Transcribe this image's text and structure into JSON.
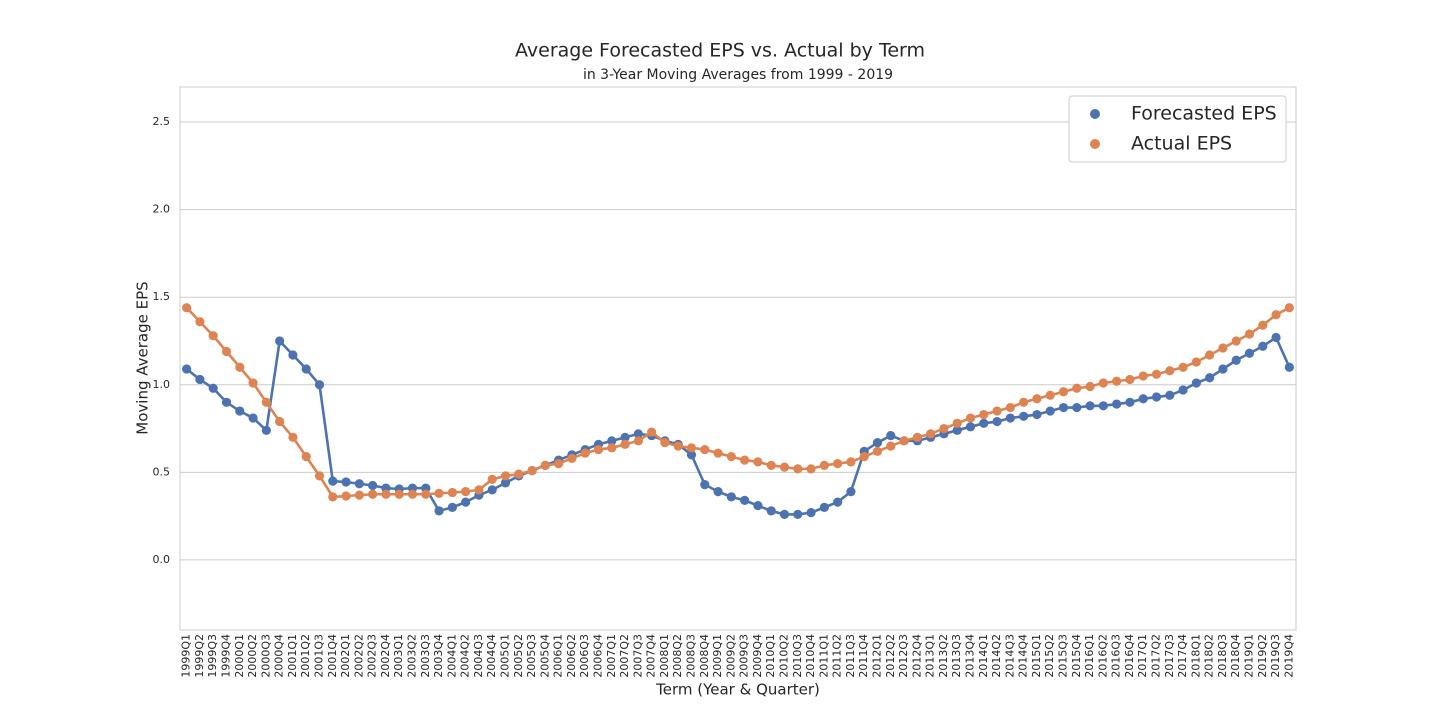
{
  "chart_data": {
    "type": "line",
    "title": "Average Forecasted EPS vs. Actual by Term",
    "subtitle": "in 3-Year Moving Averages from 1999 - 2019",
    "xlabel": "Term (Year & Quarter)",
    "ylabel": "Moving Average EPS",
    "categories": [
      "1999Q1",
      "1999Q2",
      "1999Q3",
      "1999Q4",
      "2000Q1",
      "2000Q2",
      "2000Q3",
      "2000Q4",
      "2001Q1",
      "2001Q2",
      "2001Q3",
      "2001Q4",
      "2002Q1",
      "2002Q2",
      "2002Q3",
      "2002Q4",
      "2003Q1",
      "2003Q2",
      "2003Q3",
      "2003Q4",
      "2004Q1",
      "2004Q2",
      "2004Q3",
      "2004Q4",
      "2005Q1",
      "2005Q2",
      "2005Q3",
      "2005Q4",
      "2006Q1",
      "2006Q2",
      "2006Q3",
      "2006Q4",
      "2007Q1",
      "2007Q2",
      "2007Q3",
      "2007Q4",
      "2008Q1",
      "2008Q2",
      "2008Q3",
      "2008Q4",
      "2009Q1",
      "2009Q2",
      "2009Q3",
      "2009Q4",
      "2010Q1",
      "2010Q2",
      "2010Q3",
      "2010Q4",
      "2011Q1",
      "2011Q2",
      "2011Q3",
      "2011Q4",
      "2012Q1",
      "2012Q2",
      "2012Q3",
      "2012Q4",
      "2013Q1",
      "2013Q2",
      "2013Q3",
      "2013Q4",
      "2014Q1",
      "2014Q2",
      "2014Q3",
      "2014Q4",
      "2015Q1",
      "2015Q2",
      "2015Q3",
      "2015Q4",
      "2016Q1",
      "2016Q2",
      "2016Q3",
      "2016Q4",
      "2017Q1",
      "2017Q2",
      "2017Q3",
      "2017Q4",
      "2018Q1",
      "2018Q2",
      "2018Q3",
      "2018Q4",
      "2019Q1",
      "2019Q2",
      "2019Q3",
      "2019Q4"
    ],
    "series": [
      {
        "name": "Forecasted EPS",
        "color": "#4c72b0",
        "values": [
          1.09,
          1.03,
          0.98,
          0.9,
          0.85,
          0.81,
          0.74,
          1.25,
          1.17,
          1.09,
          1.0,
          0.45,
          0.445,
          0.435,
          0.425,
          0.41,
          0.405,
          0.41,
          0.41,
          0.28,
          0.3,
          0.33,
          0.37,
          0.4,
          0.44,
          0.48,
          0.51,
          0.54,
          0.57,
          0.6,
          0.63,
          0.66,
          0.68,
          0.7,
          0.72,
          0.71,
          0.68,
          0.66,
          0.6,
          0.43,
          0.39,
          0.36,
          0.34,
          0.31,
          0.28,
          0.26,
          0.26,
          0.27,
          0.3,
          0.33,
          0.39,
          0.62,
          0.67,
          0.71,
          0.68,
          0.68,
          0.7,
          0.72,
          0.74,
          0.76,
          0.78,
          0.79,
          0.81,
          0.82,
          0.83,
          0.85,
          0.87,
          0.87,
          0.88,
          0.88,
          0.89,
          0.9,
          0.92,
          0.93,
          0.94,
          0.97,
          1.01,
          1.04,
          1.09,
          1.14,
          1.18,
          1.22,
          1.27,
          1.1
        ]
      },
      {
        "name": "Actual EPS",
        "color": "#dd8452",
        "values": [
          1.44,
          1.36,
          1.28,
          1.19,
          1.1,
          1.01,
          0.9,
          0.79,
          0.7,
          0.59,
          0.48,
          0.36,
          0.365,
          0.37,
          0.375,
          0.375,
          0.375,
          0.375,
          0.375,
          0.38,
          0.385,
          0.39,
          0.4,
          0.46,
          0.48,
          0.49,
          0.51,
          0.54,
          0.55,
          0.58,
          0.61,
          0.63,
          0.64,
          0.66,
          0.68,
          0.73,
          0.67,
          0.65,
          0.64,
          0.63,
          0.61,
          0.59,
          0.57,
          0.56,
          0.54,
          0.53,
          0.52,
          0.52,
          0.54,
          0.55,
          0.56,
          0.59,
          0.62,
          0.65,
          0.68,
          0.7,
          0.72,
          0.75,
          0.78,
          0.81,
          0.83,
          0.85,
          0.87,
          0.9,
          0.92,
          0.94,
          0.96,
          0.98,
          0.99,
          1.01,
          1.02,
          1.03,
          1.05,
          1.06,
          1.08,
          1.1,
          1.13,
          1.17,
          1.21,
          1.25,
          1.29,
          1.34,
          1.4,
          1.44
        ]
      }
    ],
    "ylim": [
      -0.4,
      2.7
    ],
    "yticks": [
      {
        "value": 0,
        "label": "0.0"
      },
      0.5,
      {
        "value": 1,
        "label": "1.0"
      },
      1.5,
      {
        "value": 2,
        "label": "2.0"
      },
      2.5
    ],
    "grid": true,
    "legend": "upper right"
  }
}
